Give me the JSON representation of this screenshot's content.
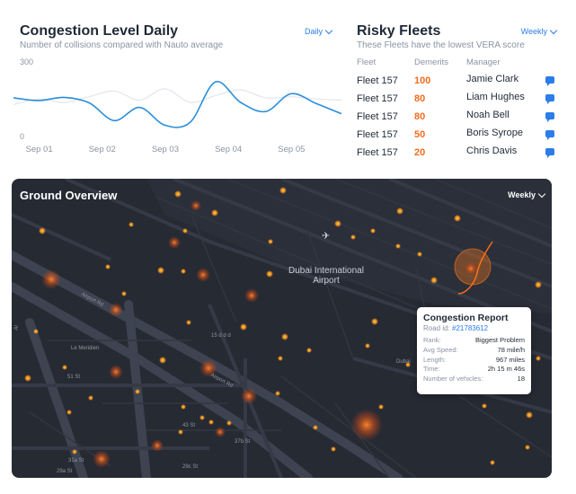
{
  "congestion": {
    "title": "Congestion Level Daily",
    "subtitle": "Number of collisions compared with Nauto average",
    "period": "Daily",
    "chart_data": {
      "type": "line",
      "title": "Congestion Level Daily",
      "ylim": [
        0,
        300
      ],
      "y_ticks": [
        "300",
        "0"
      ],
      "categories": [
        "Sep 01",
        "Sep 02",
        "Sep 03",
        "Sep 04",
        "Sep 05"
      ],
      "x": [
        0.6,
        1.0,
        1.4,
        1.8,
        2.2,
        2.6,
        3.0,
        3.4,
        3.8,
        4.2,
        4.6,
        5.0,
        5.4,
        5.8
      ],
      "series": [
        {
          "name": "Fleet",
          "color": "#2b8ed8",
          "values": [
            170,
            158,
            172,
            148,
            70,
            128,
            50,
            62,
            240,
            150,
            110,
            188,
            145,
            100
          ]
        },
        {
          "name": "Nauto average",
          "color": "#e2e5ea",
          "values": [
            140,
            165,
            150,
            175,
            200,
            160,
            210,
            150,
            180,
            205,
            170,
            175,
            165,
            160
          ]
        }
      ]
    }
  },
  "fleets": {
    "title": "Risky Fleets",
    "subtitle": "These Fleets have the lowest VERA score",
    "period": "Weekly",
    "columns": [
      "Fleet",
      "Demerits",
      "Manager"
    ],
    "rows": [
      {
        "fleet": "Fleet 157",
        "demerits": "100",
        "manager": "Jamie Clark"
      },
      {
        "fleet": "Fleet 157",
        "demerits": "80",
        "manager": "Liam Hughes"
      },
      {
        "fleet": "Fleet 157",
        "demerits": "80",
        "manager": "Noah Bell"
      },
      {
        "fleet": "Fleet 157",
        "demerits": "50",
        "manager": "Boris Syrope"
      },
      {
        "fleet": "Fleet 157",
        "demerits": "20",
        "manager": "Chris Davis"
      }
    ],
    "message_icon": "message-icon"
  },
  "map": {
    "title": "Ground Overview",
    "period": "Weekly",
    "airport_line1": "Dubai International",
    "airport_line2": "Airport",
    "airport_icon": "airplane-icon",
    "labels": {
      "airport_rd": "Airport Rd",
      "airport_rd2": "Airport Rd",
      "le_meridien": "Le Meridien",
      "st51": "51 St",
      "st43": "43 St",
      "st37b": "37b St",
      "st31a": "31a St",
      "st29a": "29a St",
      "st29c": "29c St",
      "dubai": "Dubai",
      "al": "Al",
      "jetted": "15 d d d"
    },
    "accent": "#ff7a1a"
  },
  "report": {
    "title": "Congestion Report",
    "road_label": "Road id:",
    "road_id": "#21783612",
    "rank_label": "Rank:",
    "rank": "Biggest Problem",
    "speed_label": "Avg Speed:",
    "speed": "78 mile/h",
    "length_label": "Length:",
    "length": "967 miles",
    "time_label": "Time:",
    "time": "2h 15 m 46s",
    "vehicles_label": "Number of vehicles:",
    "vehicles": "18"
  }
}
